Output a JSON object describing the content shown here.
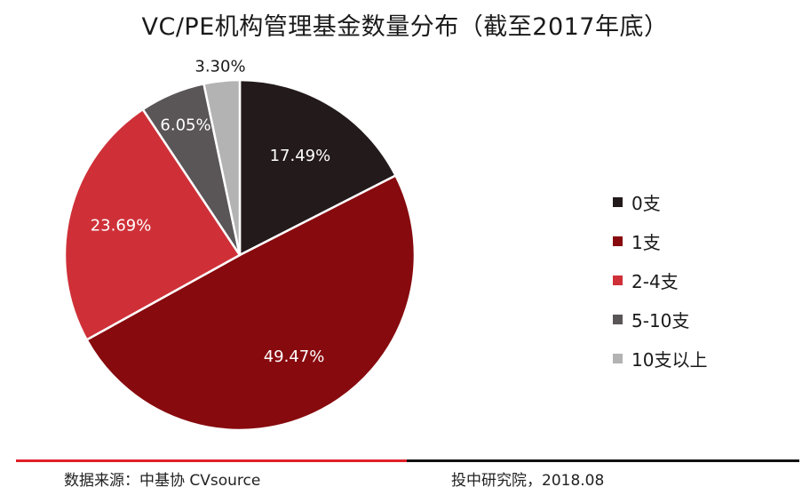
{
  "chart_data": {
    "type": "pie",
    "title": "VC/PE机构管理基金数量分布（截至2017年底）",
    "categories": [
      "0支",
      "1支",
      "2-4支",
      "5-10支",
      "10支以上"
    ],
    "values": [
      17.49,
      49.47,
      23.69,
      6.05,
      3.3
    ],
    "labels": [
      "17.49%",
      "49.47%",
      "23.69%",
      "6.05%",
      "3.30%"
    ],
    "colors": [
      "#231a1b",
      "#870a0e",
      "#cf3038",
      "#5a5557",
      "#b3b3b3"
    ],
    "label_colors": [
      "#ffffff",
      "#ffffff",
      "#ffffff",
      "#ffffff",
      "#1a1a1a"
    ],
    "legend_position": "right",
    "start_angle": "top",
    "direction": "clockwise"
  },
  "footer": {
    "source": "数据来源：中基协 CVsource",
    "credit": "投中研究院，2018.08"
  }
}
